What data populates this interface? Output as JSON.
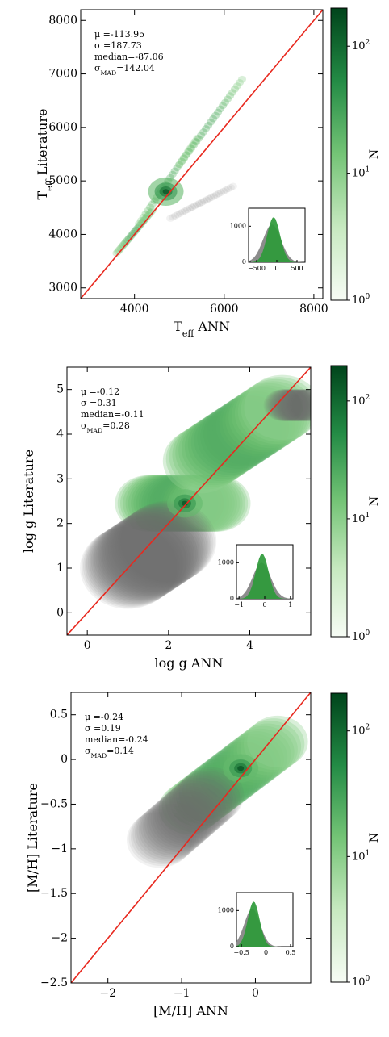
{
  "chart_data": [
    {
      "type": "heatmap",
      "panel": "teff",
      "xlabel": "T_eff ANN",
      "ylabel": "T_eff Literature",
      "xlim": [
        2800,
        8200
      ],
      "ylim": [
        2800,
        8200
      ],
      "xticks": [
        4000,
        6000,
        8000
      ],
      "yticks": [
        3000,
        4000,
        5000,
        6000,
        7000,
        8000
      ],
      "stats": [
        "μ =-113.95",
        "σ =187.73",
        "median=-87.06",
        "σ_MAD=142.04"
      ],
      "colorbar": {
        "label": "N",
        "ticks": [
          "10^0",
          "10^1",
          "10^2"
        ],
        "log_min": 0,
        "log_max": 2.3
      },
      "one_to_one_line": true,
      "density_branches": [
        {
          "x0": 3600,
          "y0": 3650,
          "x1": 4400,
          "y1": 4450,
          "scale": 0.00022
        },
        {
          "x0": 4100,
          "y0": 4200,
          "x1": 5400,
          "y1": 5800,
          "scale": 0.00014
        },
        {
          "x0": 5000,
          "y0": 5300,
          "x1": 6400,
          "y1": 6900,
          "scale": 0.0001
        },
        {
          "x0": 4800,
          "y0": 4300,
          "x1": 6200,
          "y1": 4900,
          "scale": 0.00012,
          "gray": true
        }
      ],
      "hotspot": {
        "x": 4700,
        "y": 4800
      },
      "inset": {
        "xlim": [
          -700,
          700
        ],
        "ylim": [
          0,
          1500
        ],
        "xticks": [
          -500,
          0,
          500
        ],
        "yticks": [
          0,
          1000
        ],
        "green_peak": {
          "center": -80,
          "width": 160,
          "height": 1250
        },
        "gray_peak": {
          "center": -120,
          "width": 220,
          "height": 1050
        }
      }
    },
    {
      "type": "heatmap",
      "panel": "logg",
      "xlabel": "log g ANN",
      "ylabel": "log g Literature",
      "xlim": [
        -0.5,
        5.5
      ],
      "ylim": [
        -0.5,
        5.5
      ],
      "xticks": [
        0,
        2,
        4
      ],
      "yticks": [
        0,
        1,
        2,
        3,
        4,
        5
      ],
      "stats": [
        "μ =-0.12",
        "σ =0.31",
        "median=-0.11",
        "σ_MAD=0.28"
      ],
      "colorbar": {
        "label": "N",
        "ticks": [
          "10^0",
          "10^1",
          "10^2"
        ],
        "log_min": 0,
        "log_max": 2.3
      },
      "one_to_one_line": true,
      "density_branches": [
        {
          "x0": 1.5,
          "y0": 2.45,
          "x1": 3.2,
          "y1": 2.45,
          "scale": 0.12
        },
        {
          "x0": 2.8,
          "y0": 3.4,
          "x1": 4.8,
          "y1": 4.6,
          "scale": 0.14
        },
        {
          "x0": 1.0,
          "y0": 1.0,
          "x1": 2.0,
          "y1": 1.6,
          "scale": 0.18,
          "gray": true
        },
        {
          "x0": 4.8,
          "y0": 4.65,
          "x1": 5.5,
          "y1": 4.65,
          "scale": 0.06,
          "gray": true
        }
      ],
      "hotspot": {
        "x": 2.4,
        "y": 2.45
      },
      "inset": {
        "xlim": [
          -1.1,
          1.1
        ],
        "ylim": [
          0,
          1500
        ],
        "xticks": [
          -1,
          0,
          1
        ],
        "yticks": [
          0,
          1000
        ],
        "green_peak": {
          "center": -0.1,
          "width": 0.25,
          "height": 1250
        },
        "gray_peak": {
          "center": -0.12,
          "width": 0.35,
          "height": 1000
        }
      }
    },
    {
      "type": "heatmap",
      "panel": "mh",
      "xlabel": "[M/H] ANN",
      "ylabel": "[M/H] Literature",
      "xlim": [
        -2.5,
        0.75
      ],
      "ylim": [
        -2.5,
        0.75
      ],
      "xticks": [
        -2,
        -1,
        0
      ],
      "yticks": [
        -2.5,
        -2.0,
        -1.5,
        -1.0,
        -0.5,
        0.0,
        0.5
      ],
      "stats": [
        "μ =-0.24",
        "σ =0.19",
        "median=-0.24",
        "σ_MAD=0.14"
      ],
      "colorbar": {
        "label": "N",
        "ticks": [
          "10^0",
          "10^1",
          "10^2"
        ],
        "log_min": 0,
        "log_max": 2.3
      },
      "one_to_one_line": true,
      "density_branches": [
        {
          "x0": -0.9,
          "y0": -0.55,
          "x1": 0.3,
          "y1": 0.2,
          "scale": 0.11
        },
        {
          "x0": -1.3,
          "y0": -0.9,
          "x1": -0.6,
          "y1": -0.4,
          "scale": 0.12,
          "gray": true
        }
      ],
      "hotspot": {
        "x": -0.2,
        "y": -0.1
      },
      "inset": {
        "xlim": [
          -0.6,
          0.55
        ],
        "ylim": [
          0,
          1500
        ],
        "xticks": [
          -0.5,
          0.0,
          0.5
        ],
        "yticks": [
          0,
          1000
        ],
        "green_peak": {
          "center": -0.25,
          "width": 0.12,
          "height": 1250
        },
        "gray_peak": {
          "center": -0.28,
          "width": 0.16,
          "height": 1050
        }
      }
    }
  ]
}
